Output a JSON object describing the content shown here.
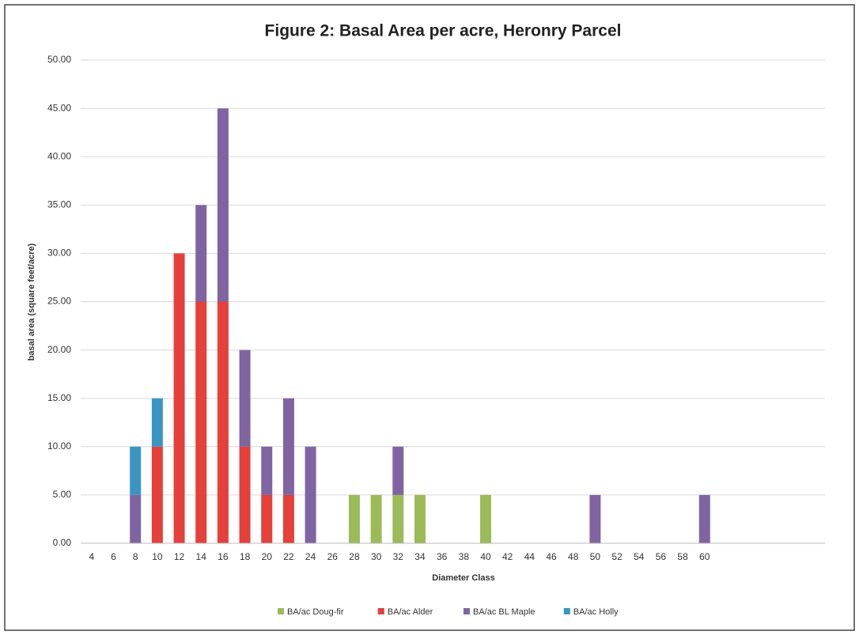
{
  "chart_data": {
    "type": "stacked_bar",
    "title": "Figure 2: Basal Area per acre, Heronry Parcel",
    "x_label": "Diameter Class",
    "y_label": "basal area (square feet/acre)",
    "categories": [
      "4",
      "6",
      "8",
      "10",
      "12",
      "14",
      "16",
      "18",
      "20",
      "22",
      "24",
      "26",
      "28",
      "30",
      "32",
      "34",
      "36",
      "38",
      "40",
      "42",
      "44",
      "46",
      "48",
      "50",
      "52",
      "54",
      "56",
      "58",
      "60",
      null,
      null,
      null,
      null,
      null
    ],
    "series": [
      {
        "name": "BA/ac Doug-fir",
        "color": "#9bbb59",
        "values": [
          0,
          0,
          0,
          0,
          0,
          0,
          0,
          0,
          0,
          0,
          0,
          0,
          5,
          5,
          5,
          5,
          0,
          0,
          5,
          0,
          0,
          0,
          0,
          0,
          0,
          0,
          0,
          0,
          0,
          0,
          0,
          0,
          0,
          0
        ]
      },
      {
        "name": "BA/ac Alder",
        "color": "#e5403a",
        "values": [
          0,
          0,
          0,
          10,
          30,
          25,
          25,
          10,
          5,
          5,
          0,
          0,
          0,
          0,
          0,
          0,
          0,
          0,
          0,
          0,
          0,
          0,
          0,
          0,
          0,
          0,
          0,
          0,
          0,
          0,
          0,
          0,
          0,
          0
        ]
      },
      {
        "name": "BA/ac BL Maple",
        "color": "#8064a2",
        "values": [
          0,
          0,
          5,
          0,
          0,
          10,
          20,
          10,
          5,
          10,
          10,
          0,
          0,
          0,
          5,
          0,
          0,
          0,
          0,
          0,
          0,
          0,
          0,
          5,
          0,
          0,
          0,
          0,
          5,
          0,
          0,
          0,
          0,
          0
        ]
      },
      {
        "name": "BA/ac Holly",
        "color": "#3a95c3",
        "values": [
          0,
          0,
          5,
          5,
          0,
          0,
          0,
          0,
          0,
          0,
          0,
          0,
          0,
          0,
          0,
          0,
          0,
          0,
          0,
          0,
          0,
          0,
          0,
          0,
          0,
          0,
          0,
          0,
          0,
          0,
          0,
          0,
          0,
          0
        ]
      }
    ],
    "ylim": [
      0,
      50
    ],
    "yticks": [
      {
        "value": 0,
        "label": "0.00"
      },
      {
        "value": 5,
        "label": "5.00"
      },
      {
        "value": 10,
        "label": "10.00"
      },
      {
        "value": 15,
        "label": "15.00"
      },
      {
        "value": 20,
        "label": "20.00"
      },
      {
        "value": 25,
        "label": "25.00"
      },
      {
        "value": 30,
        "label": "30.00"
      },
      {
        "value": 35,
        "label": "35.00"
      },
      {
        "value": 40,
        "label": "40.00"
      },
      {
        "value": 45,
        "label": "45.00"
      },
      {
        "value": 50,
        "label": "50.00"
      }
    ],
    "grid": true,
    "legend": "bottom"
  }
}
